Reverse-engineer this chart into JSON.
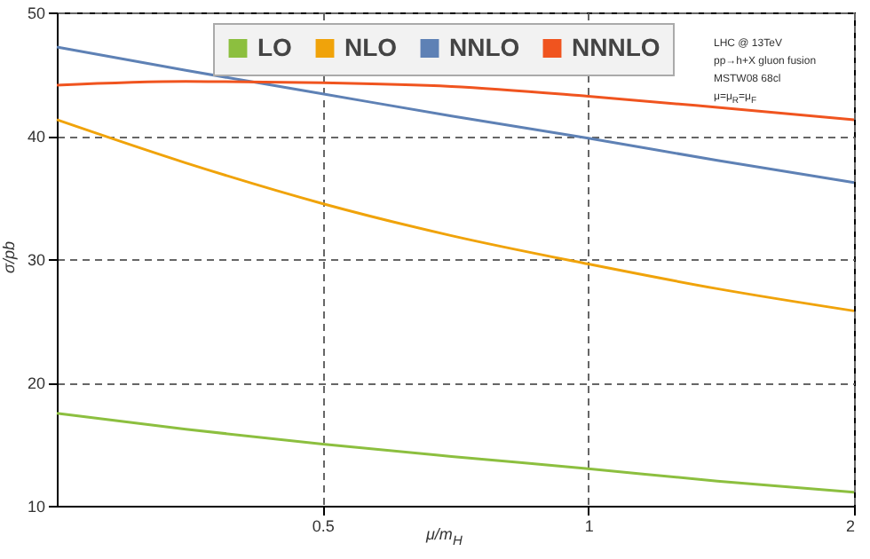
{
  "chart_data": {
    "type": "line",
    "xlabel": "μ/m$_{H}$",
    "ylabel": "σ/pb",
    "x": [
      0.25,
      0.35,
      0.5,
      0.7,
      1,
      1.4,
      2
    ],
    "series": [
      {
        "name": "LO",
        "color": "#8cbf3f",
        "values": [
          17.5,
          16.2,
          15.0,
          14.0,
          13.0,
          12.0,
          11.1
        ]
      },
      {
        "name": "NLO",
        "color": "#f0a30a",
        "values": [
          41.3,
          37.8,
          34.5,
          31.9,
          29.6,
          27.6,
          25.8
        ]
      },
      {
        "name": "NNLO",
        "color": "#5e81b5",
        "values": [
          47.2,
          45.3,
          43.4,
          41.6,
          39.8,
          38.0,
          36.2
        ]
      },
      {
        "name": "NNNLO",
        "color": "#f0541f",
        "values": [
          44.1,
          44.4,
          44.3,
          44.0,
          43.2,
          42.3,
          41.3
        ]
      }
    ],
    "log": "x",
    "xlim": [
      0.25,
      2
    ],
    "xticks": [
      0.5,
      1,
      2
    ],
    "ylim": [
      10,
      50
    ],
    "yticks": [
      10,
      20,
      30,
      40,
      50
    ],
    "grid": true,
    "legend": "top",
    "line_style": "solid",
    "marker": "none",
    "annotations": [
      "LHC @ 13TeV",
      "pp→h+X gluon fusion",
      "MSTW08 68cl",
      "μ=μ$_{R}$=μ$_{F}$"
    ]
  }
}
